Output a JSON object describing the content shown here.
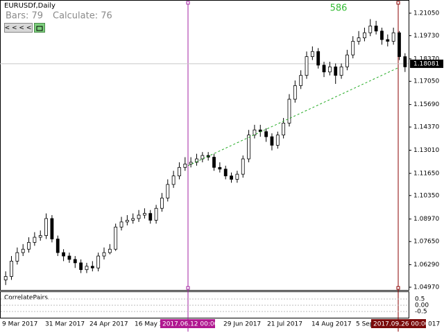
{
  "chart_data": {
    "type": "candlestick",
    "title": "EURUSDf,Daily",
    "bars_label": "Bars: 79",
    "calc_label": "Calculate: 76",
    "counter": "586",
    "nav_button": "< < < <",
    "open": [
      1.054,
      1.056,
      1.065,
      1.07,
      1.072,
      1.076,
      1.079,
      1.08,
      1.09,
      1.078,
      1.07,
      1.068,
      1.066,
      1.064,
      1.06,
      1.062,
      1.061,
      1.068,
      1.07,
      1.072,
      1.085,
      1.088,
      1.089,
      1.09,
      1.092,
      1.093,
      1.089,
      1.096,
      1.102,
      1.11,
      1.115,
      1.12,
      1.122,
      1.123,
      1.125,
      1.127,
      1.126,
      1.12,
      1.119,
      1.115,
      1.113,
      1.116,
      1.125,
      1.139,
      1.142,
      1.141,
      1.138,
      1.133,
      1.139,
      1.146,
      1.16,
      1.168,
      1.174,
      1.185,
      1.188,
      1.18,
      1.176,
      1.179,
      1.174,
      1.179,
      1.186,
      1.194,
      1.196,
      1.199,
      1.203,
      1.2,
      1.195,
      1.194,
      1.199,
      1.185
    ],
    "high": [
      1.059,
      1.068,
      1.073,
      1.075,
      1.079,
      1.082,
      1.083,
      1.093,
      1.092,
      1.08,
      1.072,
      1.07,
      1.068,
      1.066,
      1.064,
      1.065,
      1.07,
      1.073,
      1.075,
      1.087,
      1.091,
      1.092,
      1.093,
      1.095,
      1.096,
      1.095,
      1.098,
      1.105,
      1.113,
      1.118,
      1.123,
      1.126,
      1.126,
      1.128,
      1.129,
      1.129,
      1.128,
      1.123,
      1.121,
      1.117,
      1.118,
      1.127,
      1.142,
      1.145,
      1.145,
      1.143,
      1.14,
      1.141,
      1.149,
      1.163,
      1.171,
      1.177,
      1.188,
      1.191,
      1.19,
      1.182,
      1.182,
      1.181,
      1.181,
      1.189,
      1.197,
      1.2,
      1.202,
      1.207,
      1.206,
      1.202,
      1.198,
      1.202,
      1.2,
      1.187
    ],
    "low": [
      1.051,
      1.054,
      1.063,
      1.068,
      1.07,
      1.074,
      1.077,
      1.078,
      1.076,
      1.068,
      1.065,
      1.064,
      1.061,
      1.058,
      1.058,
      1.059,
      1.059,
      1.066,
      1.069,
      1.071,
      1.083,
      1.086,
      1.087,
      1.088,
      1.09,
      1.087,
      1.087,
      1.094,
      1.1,
      1.108,
      1.113,
      1.118,
      1.12,
      1.121,
      1.123,
      1.124,
      1.118,
      1.117,
      1.113,
      1.111,
      1.111,
      1.114,
      1.123,
      1.137,
      1.138,
      1.135,
      1.13,
      1.131,
      1.137,
      1.144,
      1.158,
      1.166,
      1.172,
      1.183,
      1.178,
      1.173,
      1.174,
      1.169,
      1.172,
      1.177,
      1.184,
      1.192,
      1.194,
      1.197,
      1.198,
      1.192,
      1.191,
      1.192,
      1.183,
      1.176
    ],
    "close": [
      1.056,
      1.065,
      1.07,
      1.072,
      1.076,
      1.079,
      1.08,
      1.09,
      1.078,
      1.07,
      1.068,
      1.066,
      1.064,
      1.06,
      1.062,
      1.061,
      1.068,
      1.07,
      1.072,
      1.085,
      1.088,
      1.089,
      1.09,
      1.092,
      1.093,
      1.089,
      1.096,
      1.102,
      1.11,
      1.115,
      1.12,
      1.122,
      1.123,
      1.125,
      1.127,
      1.126,
      1.12,
      1.119,
      1.115,
      1.113,
      1.116,
      1.125,
      1.139,
      1.142,
      1.141,
      1.138,
      1.133,
      1.139,
      1.146,
      1.16,
      1.168,
      1.174,
      1.185,
      1.188,
      1.18,
      1.176,
      1.179,
      1.174,
      1.179,
      1.186,
      1.194,
      1.196,
      1.199,
      1.203,
      1.2,
      1.195,
      1.194,
      1.199,
      1.185,
      1.179
    ],
    "ylim": [
      1.04807,
      1.21823
    ],
    "yticks": [
      {
        "value": 1.2105,
        "label": "1.21050"
      },
      {
        "value": 1.1973,
        "label": "1.19730"
      },
      {
        "value": 1.1837,
        "label": "1.18370"
      },
      {
        "value": 1.1705,
        "label": "1.17050"
      },
      {
        "value": 1.1569,
        "label": "1.15690"
      },
      {
        "value": 1.1437,
        "label": "1.14370"
      },
      {
        "value": 1.1301,
        "label": "1.13010"
      },
      {
        "value": 1.1165,
        "label": "1.11650"
      },
      {
        "value": 1.1035,
        "label": "1.10350"
      },
      {
        "value": 1.0897,
        "label": "1.08970"
      },
      {
        "value": 1.0765,
        "label": "1.07650"
      },
      {
        "value": 1.0629,
        "label": "1.06290"
      },
      {
        "value": 1.0497,
        "label": "1.04970"
      }
    ],
    "last_price": {
      "value": 1.18081,
      "label": "1.18081"
    },
    "trendline": [
      1.121,
      1.1785
    ],
    "trendline_color": "#22aa22",
    "x_labels": [
      "9 Mar 2017",
      "31 Mar 2017",
      "24 Apr 2017",
      "16 May 2017",
      "29 Jun 2017",
      "21 Jul 2017",
      "14 Aug 2017",
      "5 Sep 2017",
      "017"
    ],
    "markers": [
      {
        "label": "2017.06.12 00:00",
        "color": "#b01890"
      },
      {
        "label": "2017.09.26 00:00",
        "color": "#7a0a0a"
      }
    ],
    "indicator": {
      "name": "CorrelatePairs",
      "ylim": [
        -1.0,
        1.11
      ],
      "yticks": [
        0.5,
        {
          "value": 0,
          "label": "0.00"
        },
        -0.5
      ]
    }
  }
}
